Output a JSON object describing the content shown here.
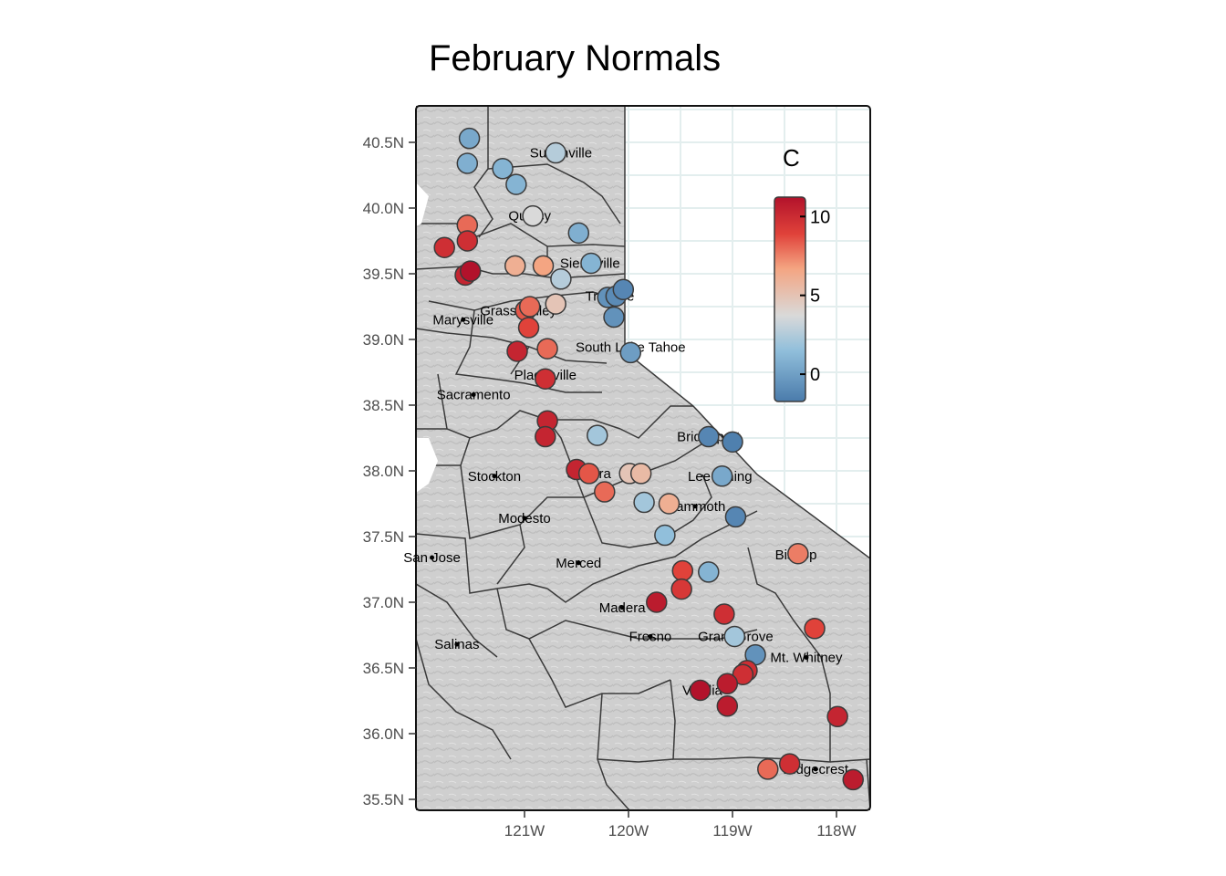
{
  "title": "February Normals",
  "axes": {
    "lat_labels": [
      "40.5N",
      "40.0N",
      "39.5N",
      "39.0N",
      "38.5N",
      "38.0N",
      "37.5N",
      "37.0N",
      "36.5N",
      "36.0N",
      "35.5N"
    ],
    "lat_values": [
      40.5,
      40.0,
      39.5,
      39.0,
      38.5,
      38.0,
      37.5,
      37.0,
      36.5,
      36.0,
      35.5
    ],
    "lon_labels": [
      "121W",
      "120W",
      "119W",
      "118W"
    ],
    "lon_values": [
      -121,
      -120,
      -119,
      -118
    ]
  },
  "legend": {
    "title": "C",
    "ticks": [
      "10",
      "5",
      "0"
    ],
    "tick_values": [
      10,
      5,
      0
    ],
    "range": [
      -1.5,
      11
    ]
  },
  "colors": {
    "low": "#4a7bab",
    "mid": "#d9d9d9",
    "high": "#b2122b",
    "land": "#cfcfcf",
    "grid": "#e3eeee",
    "border": "#3a3a3a"
  },
  "cities": [
    {
      "name": "Susanville",
      "lon": -120.65,
      "lat": 40.42
    },
    {
      "name": "Quincy",
      "lon": -120.95,
      "lat": 39.94
    },
    {
      "name": "Sierraville",
      "lon": -120.37,
      "lat": 39.58
    },
    {
      "name": "Truckee",
      "lon": -120.18,
      "lat": 39.33
    },
    {
      "name": "Grass Valley",
      "lon": -121.06,
      "lat": 39.22
    },
    {
      "name": "Marysville",
      "lon": -121.59,
      "lat": 39.15
    },
    {
      "name": "South Lake Tahoe",
      "lon": -119.98,
      "lat": 38.94
    },
    {
      "name": "Placerville",
      "lon": -120.8,
      "lat": 38.73
    },
    {
      "name": "Sacramento",
      "lon": -121.49,
      "lat": 38.58
    },
    {
      "name": "Bridgeport",
      "lon": -119.23,
      "lat": 38.26
    },
    {
      "name": "Sonora",
      "lon": -120.38,
      "lat": 37.98
    },
    {
      "name": "Stockton",
      "lon": -121.29,
      "lat": 37.96
    },
    {
      "name": "Lee Vining",
      "lon": -119.12,
      "lat": 37.96
    },
    {
      "name": "Mammoth",
      "lon": -119.36,
      "lat": 37.73
    },
    {
      "name": "Modesto",
      "lon": -121.0,
      "lat": 37.64
    },
    {
      "name": "Bishop",
      "lon": -118.39,
      "lat": 37.36
    },
    {
      "name": "San Jose",
      "lon": -121.89,
      "lat": 37.34
    },
    {
      "name": "Merced",
      "lon": -120.48,
      "lat": 37.3
    },
    {
      "name": "Madera",
      "lon": -120.06,
      "lat": 36.96
    },
    {
      "name": "Fresno",
      "lon": -119.79,
      "lat": 36.74
    },
    {
      "name": "Grant Grove",
      "lon": -118.97,
      "lat": 36.74
    },
    {
      "name": "Mt. Whitney",
      "lon": -118.29,
      "lat": 36.58
    },
    {
      "name": "Salinas",
      "lon": -121.65,
      "lat": 36.68
    },
    {
      "name": "Visalia",
      "lon": -119.29,
      "lat": 36.33
    },
    {
      "name": "Ridgecrest",
      "lon": -118.2,
      "lat": 35.73
    }
  ],
  "stations": [
    {
      "lon": -121.53,
      "lat": 40.53,
      "temp": 0.5
    },
    {
      "lon": -121.55,
      "lat": 40.34,
      "temp": 0.8
    },
    {
      "lon": -121.21,
      "lat": 40.3,
      "temp": 1.0
    },
    {
      "lon": -121.08,
      "lat": 40.18,
      "temp": 1.0
    },
    {
      "lon": -120.7,
      "lat": 40.42,
      "temp": 2.5
    },
    {
      "lon": -120.92,
      "lat": 39.94,
      "temp": 3.5
    },
    {
      "lon": -120.48,
      "lat": 39.81,
      "temp": 0.8
    },
    {
      "lon": -121.55,
      "lat": 39.87,
      "temp": 7.5
    },
    {
      "lon": -121.55,
      "lat": 39.75,
      "temp": 9.5
    },
    {
      "lon": -121.77,
      "lat": 39.7,
      "temp": 9.5
    },
    {
      "lon": -121.57,
      "lat": 39.49,
      "temp": 10.0
    },
    {
      "lon": -121.52,
      "lat": 39.52,
      "temp": 11.0
    },
    {
      "lon": -121.09,
      "lat": 39.56,
      "temp": 5.5
    },
    {
      "lon": -120.82,
      "lat": 39.56,
      "temp": 6.0
    },
    {
      "lon": -120.36,
      "lat": 39.58,
      "temp": 1.0
    },
    {
      "lon": -120.65,
      "lat": 39.46,
      "temp": 2.5
    },
    {
      "lon": -120.7,
      "lat": 39.27,
      "temp": 4.5
    },
    {
      "lon": -120.2,
      "lat": 39.32,
      "temp": -0.5
    },
    {
      "lon": -120.12,
      "lat": 39.33,
      "temp": -0.8
    },
    {
      "lon": -120.05,
      "lat": 39.38,
      "temp": -1.0
    },
    {
      "lon": -120.14,
      "lat": 39.17,
      "temp": -0.5
    },
    {
      "lon": -120.99,
      "lat": 39.22,
      "temp": 8.0
    },
    {
      "lon": -120.95,
      "lat": 39.25,
      "temp": 7.5
    },
    {
      "lon": -120.96,
      "lat": 39.09,
      "temp": 8.5
    },
    {
      "lon": -121.07,
      "lat": 38.91,
      "temp": 10.0
    },
    {
      "lon": -120.78,
      "lat": 38.93,
      "temp": 7.5
    },
    {
      "lon": -119.98,
      "lat": 38.9,
      "temp": 0.0
    },
    {
      "lon": -120.8,
      "lat": 38.7,
      "temp": 9.5
    },
    {
      "lon": -120.78,
      "lat": 38.38,
      "temp": 10.0
    },
    {
      "lon": -120.8,
      "lat": 38.26,
      "temp": 10.0
    },
    {
      "lon": -120.3,
      "lat": 38.27,
      "temp": 2.0
    },
    {
      "lon": -120.5,
      "lat": 38.01,
      "temp": 10.0
    },
    {
      "lon": -120.38,
      "lat": 37.98,
      "temp": 8.0
    },
    {
      "lon": -120.23,
      "lat": 37.84,
      "temp": 7.5
    },
    {
      "lon": -119.99,
      "lat": 37.98,
      "temp": 4.5
    },
    {
      "lon": -119.88,
      "lat": 37.98,
      "temp": 5.0
    },
    {
      "lon": -119.85,
      "lat": 37.76,
      "temp": 2.0
    },
    {
      "lon": -119.61,
      "lat": 37.75,
      "temp": 5.5
    },
    {
      "lon": -119.65,
      "lat": 37.51,
      "temp": 1.5
    },
    {
      "lon": -119.23,
      "lat": 38.26,
      "temp": -1.0
    },
    {
      "lon": -119.0,
      "lat": 38.22,
      "temp": -1.3
    },
    {
      "lon": -119.1,
      "lat": 37.96,
      "temp": 0.5
    },
    {
      "lon": -118.97,
      "lat": 37.65,
      "temp": -1.0
    },
    {
      "lon": -118.37,
      "lat": 37.37,
      "temp": 7.0
    },
    {
      "lon": -119.48,
      "lat": 37.24,
      "temp": 8.5
    },
    {
      "lon": -119.49,
      "lat": 37.1,
      "temp": 9.0
    },
    {
      "lon": -119.73,
      "lat": 37.0,
      "temp": 10.5
    },
    {
      "lon": -119.23,
      "lat": 37.23,
      "temp": 1.0
    },
    {
      "lon": -119.08,
      "lat": 36.91,
      "temp": 9.5
    },
    {
      "lon": -118.98,
      "lat": 36.74,
      "temp": 2.0
    },
    {
      "lon": -118.21,
      "lat": 36.8,
      "temp": 8.5
    },
    {
      "lon": -118.78,
      "lat": 36.6,
      "temp": -0.5
    },
    {
      "lon": -118.86,
      "lat": 36.48,
      "temp": 9.5
    },
    {
      "lon": -118.9,
      "lat": 36.45,
      "temp": 9.5
    },
    {
      "lon": -119.05,
      "lat": 36.38,
      "temp": 10.5
    },
    {
      "lon": -119.31,
      "lat": 36.33,
      "temp": 11.0
    },
    {
      "lon": -119.05,
      "lat": 36.21,
      "temp": 10.5
    },
    {
      "lon": -117.99,
      "lat": 36.13,
      "temp": 10.0
    },
    {
      "lon": -118.66,
      "lat": 35.73,
      "temp": 7.5
    },
    {
      "lon": -118.45,
      "lat": 35.77,
      "temp": 9.5
    },
    {
      "lon": -117.84,
      "lat": 35.65,
      "temp": 10.5
    }
  ]
}
